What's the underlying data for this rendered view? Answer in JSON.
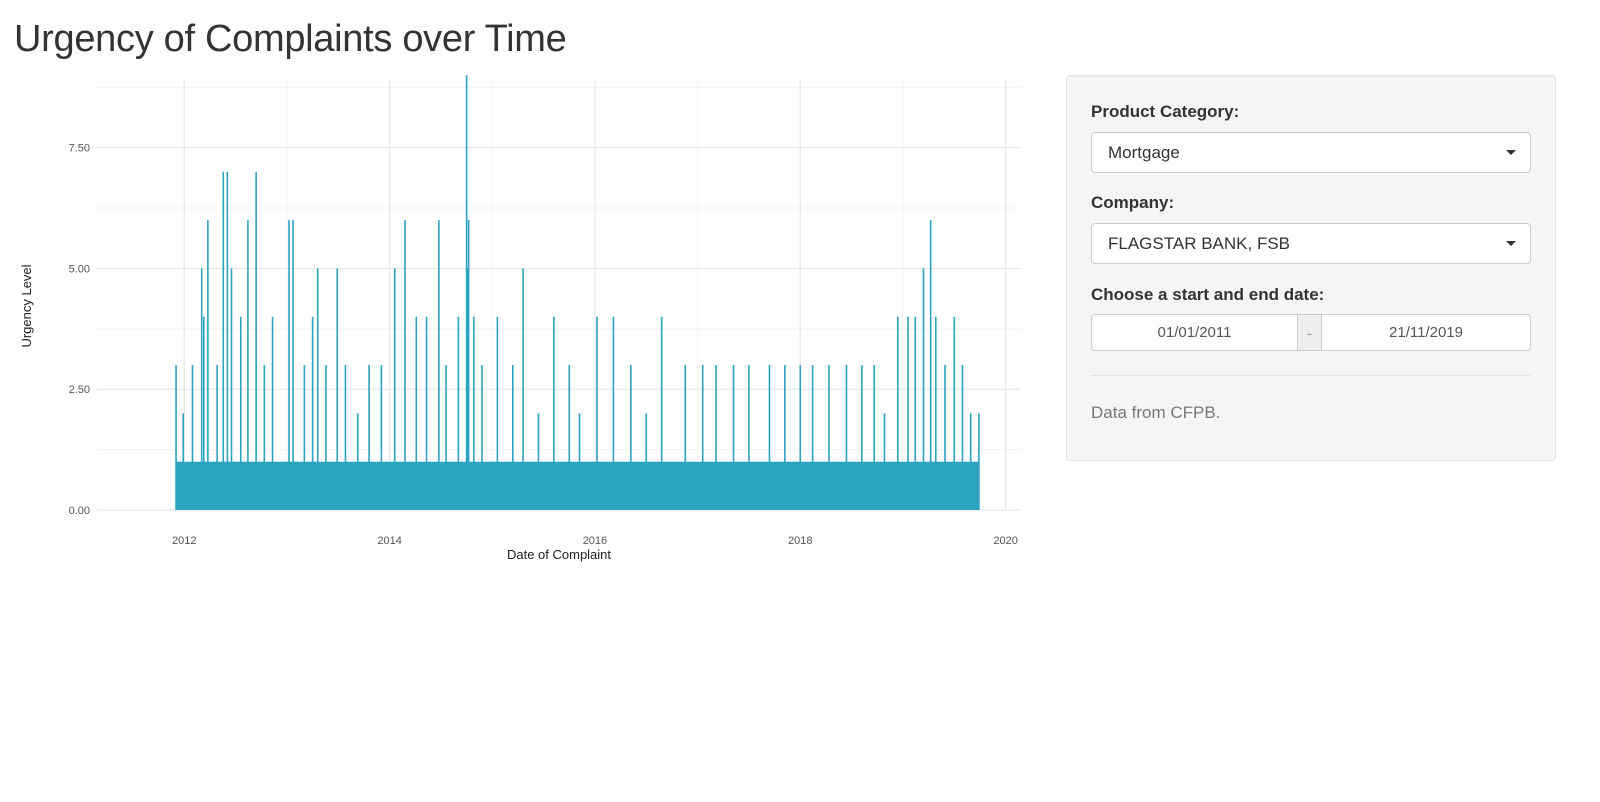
{
  "page": {
    "title": "Urgency of Complaints over Time"
  },
  "sidebar": {
    "product_label": "Product Category:",
    "product_value": "Mortgage",
    "company_label": "Company:",
    "company_value": "FLAGSTAR BANK, FSB",
    "date_label": "Choose a start and end date:",
    "date_start": "01/01/2011",
    "date_separator": "-",
    "date_end": "21/11/2019",
    "source_note": "Data from CFPB."
  },
  "chart_data": {
    "type": "bar",
    "xlabel": "Date of Complaint",
    "ylabel": "Urgency Level",
    "xlim": [
      2011.15,
      2020.15
    ],
    "ylim": [
      0,
      8.9
    ],
    "x_ticks": [
      2012,
      2014,
      2016,
      2018,
      2020
    ],
    "x_tick_labels": [
      "2012",
      "2014",
      "2016",
      "2018",
      "2020"
    ],
    "y_ticks": [
      0,
      2.5,
      5,
      7.5
    ],
    "y_tick_labels": [
      "0.00",
      "2.50",
      "5.00",
      "7.50"
    ],
    "grid": true,
    "bar_color": "#2ca3bf",
    "x": [
      2011.92,
      2011.99,
      2012.08,
      2012.17,
      2012.19,
      2012.23,
      2012.32,
      2012.38,
      2012.42,
      2012.46,
      2012.55,
      2012.62,
      2012.7,
      2012.78,
      2012.86,
      2013.02,
      2013.06,
      2013.17,
      2013.25,
      2013.3,
      2013.38,
      2013.49,
      2013.57,
      2013.69,
      2013.8,
      2013.92,
      2014.05,
      2014.15,
      2014.26,
      2014.36,
      2014.48,
      2014.55,
      2014.67,
      2014.75,
      2014.76,
      2014.77,
      2014.82,
      2014.9,
      2015.05,
      2015.2,
      2015.3,
      2015.45,
      2015.6,
      2015.75,
      2015.85,
      2016.02,
      2016.18,
      2016.35,
      2016.5,
      2016.65,
      2016.88,
      2017.05,
      2017.18,
      2017.35,
      2017.5,
      2017.7,
      2017.85,
      2018.0,
      2018.12,
      2018.28,
      2018.45,
      2018.6,
      2018.72,
      2018.82,
      2018.95,
      2019.05,
      2019.12,
      2019.2,
      2019.27,
      2019.32,
      2019.41,
      2019.5,
      2019.58,
      2019.66,
      2019.74
    ],
    "values": [
      3,
      2,
      3,
      5,
      4,
      6,
      3,
      7,
      7,
      5,
      4,
      6,
      7,
      3,
      4,
      6,
      6,
      3,
      4,
      5,
      3,
      5,
      3,
      2,
      3,
      3,
      5,
      6,
      4,
      4,
      6,
      3,
      4,
      9,
      5,
      6,
      4,
      3,
      4,
      3,
      5,
      2,
      4,
      3,
      2,
      4,
      4,
      3,
      2,
      4,
      3,
      3,
      3,
      3,
      3,
      3,
      3,
      3,
      3,
      3,
      3,
      3,
      3,
      2,
      4,
      4,
      4,
      5,
      6,
      4,
      3,
      4,
      3,
      2,
      2
    ]
  }
}
